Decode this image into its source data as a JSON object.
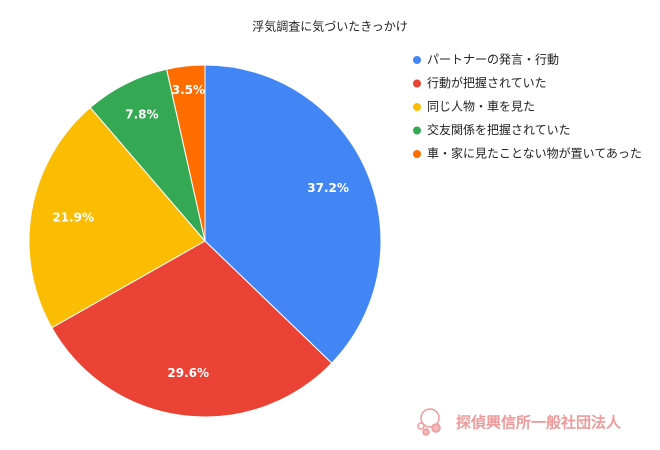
{
  "chart_data": {
    "type": "pie",
    "title": "浮気調査に気づいたきっかけ",
    "categories": [
      "パートナーの発言・行動",
      "行動が把握されていた",
      "同じ人物・車を見た",
      "交友関係を把握されていた",
      "車・家に見たことない物が置いてあった"
    ],
    "values": [
      37.2,
      29.6,
      21.9,
      7.8,
      3.5
    ],
    "value_labels": [
      "37.2%",
      "29.6%",
      "21.9%",
      "7.8%",
      "3.5%"
    ],
    "colors": [
      "#4285f4",
      "#ea4335",
      "#fbbc04",
      "#34a853",
      "#ff6d01"
    ],
    "legend": "right"
  },
  "watermark": "探偵興信所一般社団法人"
}
